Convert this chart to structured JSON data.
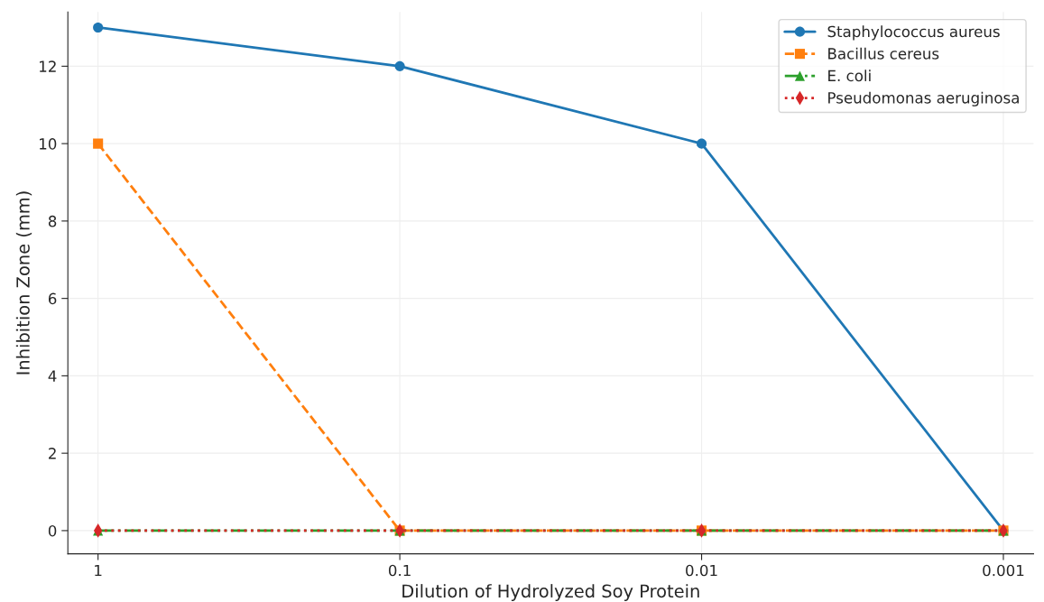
{
  "chart_data": {
    "type": "line",
    "xlabel": "Dilution of Hydrolyzed Soy Protein",
    "ylabel": "Inhibition Zone (mm)",
    "categories": [
      "1",
      "0.1",
      "0.01",
      "0.001"
    ],
    "series": [
      {
        "name": "Staphylococcus aureus",
        "color": "#1f77b4",
        "values": [
          13,
          12,
          10,
          0
        ],
        "marker": "circle",
        "line_style": "solid"
      },
      {
        "name": "Bacillus cereus",
        "color": "#ff7f0e",
        "values": [
          10,
          0,
          0,
          0
        ],
        "marker": "square",
        "line_style": "dashed"
      },
      {
        "name": "E. coli",
        "color": "#2ca02c",
        "values": [
          0,
          0,
          0,
          0
        ],
        "marker": "triangle",
        "line_style": "dashdot"
      },
      {
        "name": "Pseudomonas aeruginosa",
        "color": "#d62728",
        "values": [
          0,
          0,
          0,
          0
        ],
        "marker": "diamond",
        "line_style": "dotted"
      }
    ],
    "ylim": [
      -0.6,
      13.4
    ],
    "yticks": [
      0,
      2,
      4,
      6,
      8,
      10,
      12
    ],
    "grid": true,
    "legend": "top right"
  }
}
